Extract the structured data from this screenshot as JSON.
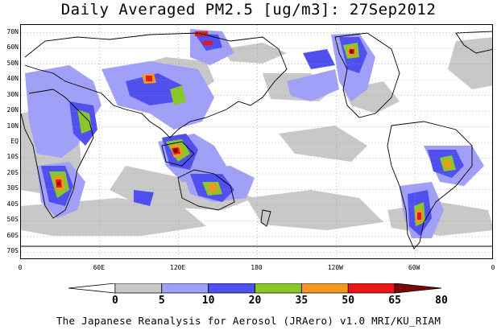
{
  "title": "Daily Averaged PM2.5 [ug/m3]: 27Sep2012",
  "footer": "The Japanese Reanalysis for Aerosol (JRAero) v1.0 MRI/KU_RIAM",
  "lat_labels": [
    "70N",
    "60N",
    "50N",
    "40N",
    "30N",
    "20N",
    "10N",
    "EQ",
    "10S",
    "20S",
    "30S",
    "40S",
    "50S",
    "60S",
    "70S"
  ],
  "lon_labels": [
    "0",
    "60E",
    "120E",
    "180",
    "120W",
    "60W",
    "0"
  ],
  "colorbar": {
    "labels": [
      "0",
      "5",
      "10",
      "20",
      "35",
      "50",
      "65",
      "80"
    ],
    "colors": [
      "#ffffff",
      "#c8c8c8",
      "#a0a0f8",
      "#5050f0",
      "#88c828",
      "#f09820",
      "#e81818",
      "#7a0a0a"
    ]
  },
  "map": {
    "extent_lon": [
      0,
      360
    ],
    "extent_lat": [
      -75,
      75
    ],
    "ocean_color": "#ffffff"
  }
}
